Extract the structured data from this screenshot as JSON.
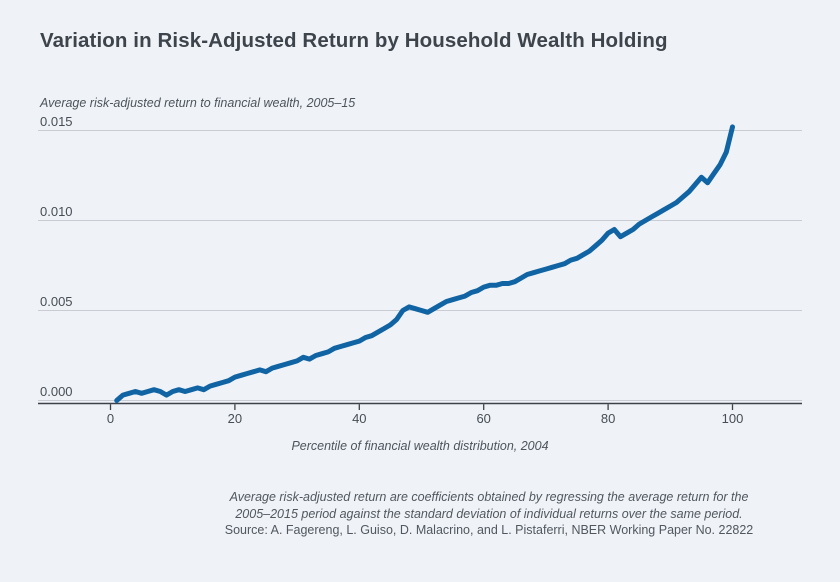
{
  "header": {
    "title": "Variation in Risk-Adjusted Return by Household Wealth Holding"
  },
  "chart_data": {
    "type": "line",
    "title": "Variation in Risk-Adjusted Return by Household Wealth Holding",
    "ylabel": "Average risk-adjusted return to financial wealth, 2005–15",
    "xlabel": "Percentile of financial wealth distribution, 2004",
    "grid": true,
    "legend": "none",
    "xlim": [
      0,
      100
    ],
    "ylim": [
      0,
      0.015
    ],
    "xticks": [
      {
        "value": 0,
        "label": "0"
      },
      {
        "value": 20,
        "label": "20"
      },
      {
        "value": 40,
        "label": "40"
      },
      {
        "value": 60,
        "label": "60"
      },
      {
        "value": 80,
        "label": "80"
      },
      {
        "value": 100,
        "label": "100"
      }
    ],
    "yticks": [
      {
        "value": 0.0,
        "label": "0.000"
      },
      {
        "value": 0.005,
        "label": "0.005"
      },
      {
        "value": 0.01,
        "label": "0.010"
      },
      {
        "value": 0.015,
        "label": "0.015"
      }
    ],
    "series_name": "Average risk-adjusted return",
    "x": [
      1,
      2,
      3,
      4,
      5,
      6,
      7,
      8,
      9,
      10,
      11,
      12,
      13,
      14,
      15,
      16,
      17,
      18,
      19,
      20,
      21,
      22,
      23,
      24,
      25,
      26,
      27,
      28,
      29,
      30,
      31,
      32,
      33,
      34,
      35,
      36,
      37,
      38,
      39,
      40,
      41,
      42,
      43,
      44,
      45,
      46,
      47,
      48,
      49,
      50,
      51,
      52,
      53,
      54,
      55,
      56,
      57,
      58,
      59,
      60,
      61,
      62,
      63,
      64,
      65,
      66,
      67,
      68,
      69,
      70,
      71,
      72,
      73,
      74,
      75,
      76,
      77,
      78,
      79,
      80,
      81,
      82,
      83,
      84,
      85,
      86,
      87,
      88,
      89,
      90,
      91,
      92,
      93,
      94,
      95,
      96,
      97,
      98,
      99,
      100
    ],
    "values": [
      0.0,
      0.0003,
      0.0004,
      0.0005,
      0.0004,
      0.0005,
      0.0006,
      0.0005,
      0.0003,
      0.0005,
      0.0006,
      0.0005,
      0.0006,
      0.0007,
      0.0006,
      0.0008,
      0.0009,
      0.001,
      0.0011,
      0.0013,
      0.0014,
      0.0015,
      0.0016,
      0.0017,
      0.0016,
      0.0018,
      0.0019,
      0.002,
      0.0021,
      0.0022,
      0.0024,
      0.0023,
      0.0025,
      0.0026,
      0.0027,
      0.0029,
      0.003,
      0.0031,
      0.0032,
      0.0033,
      0.0035,
      0.0036,
      0.0038,
      0.004,
      0.0042,
      0.0045,
      0.005,
      0.0052,
      0.0051,
      0.005,
      0.0049,
      0.0051,
      0.0053,
      0.0055,
      0.0056,
      0.0057,
      0.0058,
      0.006,
      0.0061,
      0.0063,
      0.0064,
      0.0064,
      0.0065,
      0.0065,
      0.0066,
      0.0068,
      0.007,
      0.0071,
      0.0072,
      0.0073,
      0.0074,
      0.0075,
      0.0076,
      0.0078,
      0.0079,
      0.0081,
      0.0083,
      0.0086,
      0.0089,
      0.0093,
      0.0095,
      0.0091,
      0.0093,
      0.0095,
      0.0098,
      0.01,
      0.0102,
      0.0104,
      0.0106,
      0.0108,
      0.011,
      0.0113,
      0.0116,
      0.012,
      0.0124,
      0.0121,
      0.0126,
      0.0131,
      0.0138,
      0.0152
    ],
    "colors": {
      "line": "#1164a3",
      "grid": "#c9cdd3",
      "axis": "#3c4248",
      "background": "#eff3f8"
    }
  },
  "footnotes": {
    "lines": [
      "Average risk-adjusted return are coefficients obtained by regressing the average return for the",
      "2005–2015 period against the standard deviation of individual returns over the same period.",
      "Source: A. Fagereng, L. Guiso, D. Malacrino, and L. Pistaferri, NBER Working Paper No. 22822"
    ]
  }
}
